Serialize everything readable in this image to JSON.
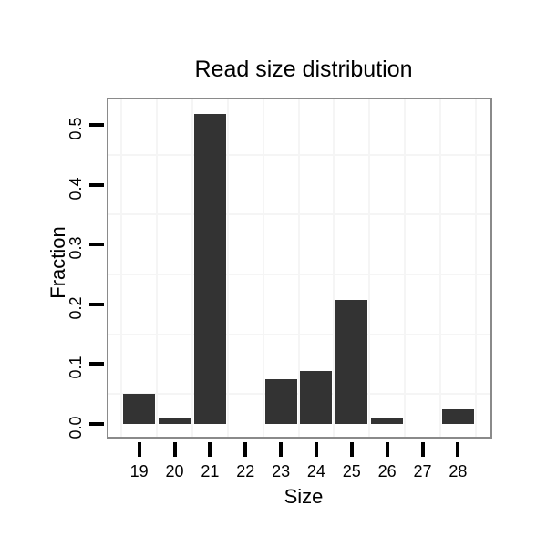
{
  "chart_data": {
    "type": "bar",
    "title": "Read size distribution",
    "xlabel": "Size",
    "ylabel": "Fraction",
    "categories": [
      "19",
      "20",
      "21",
      "22",
      "23",
      "24",
      "25",
      "26",
      "27",
      "28"
    ],
    "values": [
      0.05,
      0.011,
      0.518,
      0,
      0.075,
      0.089,
      0.207,
      0.011,
      0,
      0.024
    ],
    "yticks": [
      0.0,
      0.1,
      0.2,
      0.3,
      0.4,
      0.5
    ],
    "ytick_labels": [
      "0.0",
      "0.1",
      "0.2",
      "0.3",
      "0.4",
      "0.5"
    ],
    "minor_gridlines_y": [
      0.05,
      0.15,
      0.25,
      0.35,
      0.45
    ],
    "ylim": [
      -0.024,
      0.545
    ],
    "grid": "minor only, very light gray; verticals at category midpoints",
    "legend": "none",
    "bar_width_fraction": 0.9
  },
  "colors": {
    "bar": "#333333",
    "panel_border": "#8a8a8a",
    "gridline": "#f5f5f5",
    "tick": "#000000",
    "text": "#000000",
    "background": "#ffffff"
  }
}
